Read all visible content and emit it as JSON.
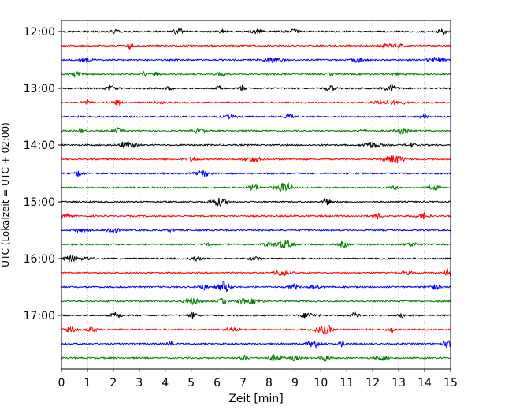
{
  "chart_data": {
    "type": "line",
    "chart_kind": "helicorder",
    "title": "",
    "xlabel": "Zeit  [min]",
    "ylabel": "UTC (Lokalzeit = UTC + 02:00)",
    "xlim": [
      0,
      15
    ],
    "x_ticks": [
      "0",
      "1",
      "2",
      "3",
      "4",
      "5",
      "6",
      "7",
      "8",
      "9",
      "10",
      "11",
      "12",
      "13",
      "14",
      "15"
    ],
    "y_ticks": [
      "12:00",
      "13:00",
      "14:00",
      "15:00",
      "16:00",
      "17:00"
    ],
    "grid": "vertical-dotted",
    "trace_colors": [
      "#000000",
      "#ff0000",
      "#0000ff",
      "#008000"
    ],
    "traces": [
      {
        "start": "12:00",
        "color": "#000000"
      },
      {
        "start": "12:15",
        "color": "#ff0000"
      },
      {
        "start": "12:30",
        "color": "#0000ff"
      },
      {
        "start": "12:45",
        "color": "#008000"
      },
      {
        "start": "13:00",
        "color": "#000000"
      },
      {
        "start": "13:15",
        "color": "#ff0000"
      },
      {
        "start": "13:30",
        "color": "#0000ff"
      },
      {
        "start": "13:45",
        "color": "#008000"
      },
      {
        "start": "14:00",
        "color": "#000000"
      },
      {
        "start": "14:15",
        "color": "#ff0000"
      },
      {
        "start": "14:30",
        "color": "#0000ff"
      },
      {
        "start": "14:45",
        "color": "#008000"
      },
      {
        "start": "15:00",
        "color": "#000000"
      },
      {
        "start": "15:15",
        "color": "#ff0000"
      },
      {
        "start": "15:30",
        "color": "#0000ff"
      },
      {
        "start": "15:45",
        "color": "#008000"
      },
      {
        "start": "16:00",
        "color": "#000000"
      },
      {
        "start": "16:15",
        "color": "#ff0000"
      },
      {
        "start": "16:30",
        "color": "#0000ff"
      },
      {
        "start": "16:45",
        "color": "#008000"
      },
      {
        "start": "17:00",
        "color": "#000000"
      },
      {
        "start": "17:15",
        "color": "#ff0000"
      },
      {
        "start": "17:30",
        "color": "#0000ff"
      },
      {
        "start": "17:45",
        "color": "#008000"
      }
    ]
  }
}
